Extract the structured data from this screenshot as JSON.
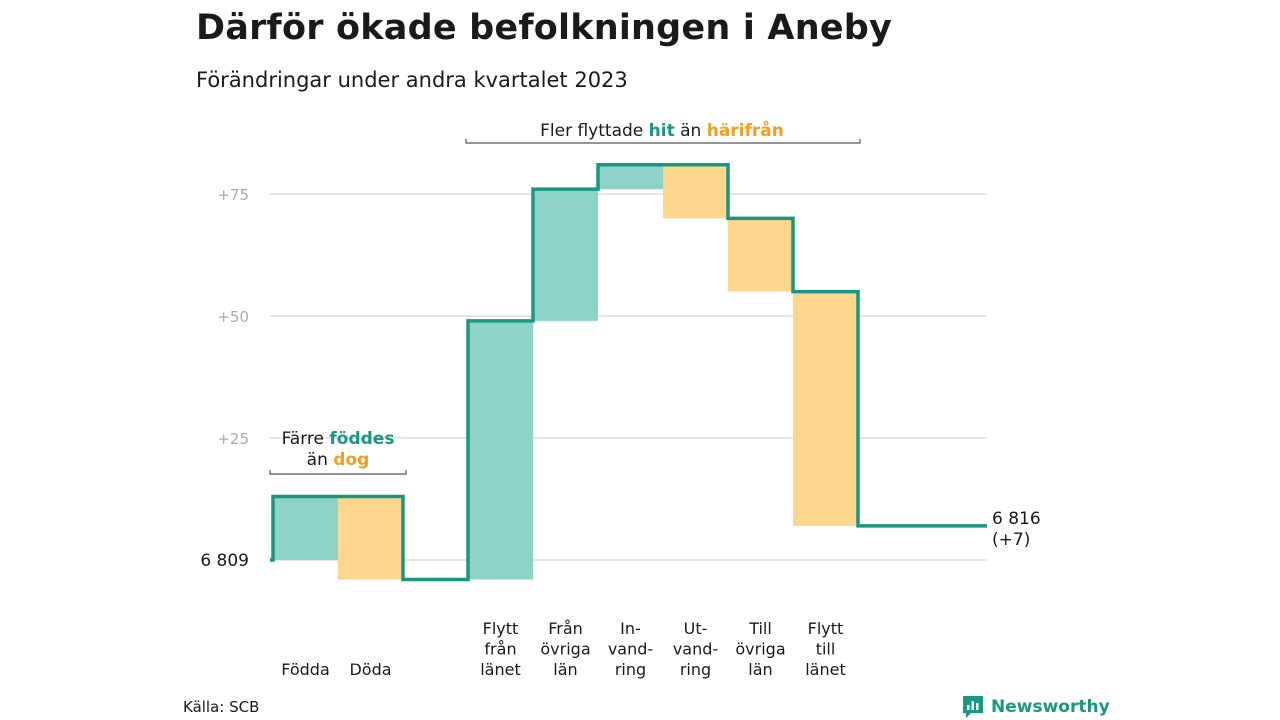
{
  "header": {
    "title": "Därför ökade befolkningen i Aneby",
    "subtitle": "Förändringar under andra kvartalet 2023"
  },
  "chart_data": {
    "type": "waterfall",
    "title": "Därför ökade befolkningen i Aneby",
    "subtitle": "Förändringar under andra kvartalet 2023",
    "start_label": "6  809",
    "end_label": [
      "6 816",
      "(+7)"
    ],
    "y_ticks": [
      {
        "value": 25,
        "label": "+25"
      },
      {
        "value": 50,
        "label": "+50"
      },
      {
        "value": 75,
        "label": "+75"
      }
    ],
    "ylim": [
      -5,
      80
    ],
    "steps": [
      {
        "label": [
          "Födda"
        ],
        "change": 13,
        "kind": "in"
      },
      {
        "label": [
          "Döda"
        ],
        "change": -17,
        "kind": "out"
      },
      {
        "label": [
          "Flytt",
          "från",
          "länet"
        ],
        "change": 53,
        "kind": "in"
      },
      {
        "label": [
          "Från",
          "övriga",
          "län"
        ],
        "change": 27,
        "kind": "in"
      },
      {
        "label": [
          "In-",
          "vand-",
          "ring"
        ],
        "change": 5,
        "kind": "in"
      },
      {
        "label": [
          "Ut-",
          "vand-",
          "ring"
        ],
        "change": -11,
        "kind": "out"
      },
      {
        "label": [
          "Till",
          "övriga",
          "län"
        ],
        "change": -15,
        "kind": "out"
      },
      {
        "label": [
          "Flytt",
          "till",
          "länet"
        ],
        "change": -48,
        "kind": "out"
      }
    ],
    "annotations": [
      {
        "group": "births",
        "lines": [
          [
            {
              "text": "Färre ",
              "style": "plain"
            },
            {
              "text": "föddes",
              "style": "in"
            }
          ],
          [
            {
              "text": "än ",
              "style": "plain"
            },
            {
              "text": "dog",
              "style": "out"
            }
          ]
        ]
      },
      {
        "group": "migration",
        "lines": [
          [
            {
              "text": "Fler flyttade ",
              "style": "plain"
            },
            {
              "text": "hit",
              "style": "in"
            },
            {
              "text": " än ",
              "style": "plain"
            },
            {
              "text": "härifrån",
              "style": "out"
            }
          ]
        ]
      }
    ],
    "colors": {
      "in_fill": "#8dd3c7",
      "out_fill": "#fcd68c",
      "line": "#1a9780",
      "in_text": "#1a9780",
      "out_text": "#f0a020",
      "grid": "#dddddd",
      "tick_text": "#aaaaaa"
    },
    "grid": true
  },
  "source": {
    "text": "Källa: SCB"
  },
  "brand": {
    "name": "Newsworthy",
    "icon": "newsworthy-logo-icon"
  }
}
